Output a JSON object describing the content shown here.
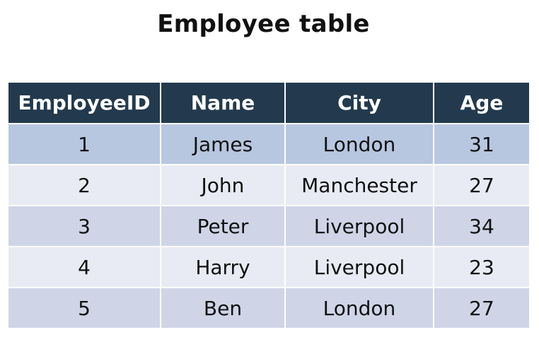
{
  "title": "Employee table",
  "table": {
    "headers": [
      "EmployeeID",
      "Name",
      "City",
      "Age"
    ],
    "rows": [
      [
        "1",
        "James",
        "London",
        "31"
      ],
      [
        "2",
        "John",
        "Manchester",
        "27"
      ],
      [
        "3",
        "Peter",
        "Liverpool",
        "34"
      ],
      [
        "4",
        "Harry",
        "Liverpool",
        "23"
      ],
      [
        "5",
        "Ben",
        "London",
        "27"
      ]
    ]
  },
  "colors": {
    "header_bg": "#233a4e",
    "first_row_bg": "#b7c7e0",
    "band_dark": "#cfd5e7",
    "band_light": "#e8ebf3"
  }
}
